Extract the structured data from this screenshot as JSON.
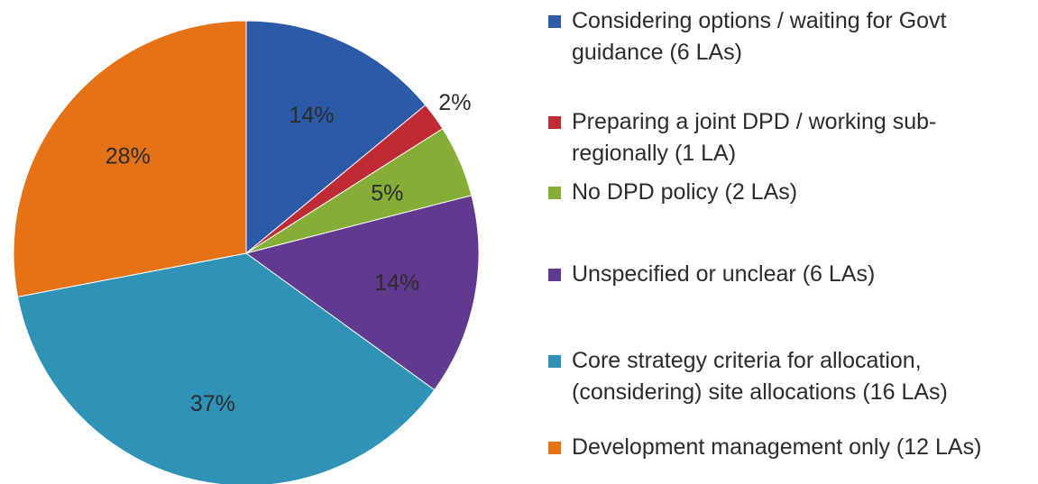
{
  "chart_data": {
    "type": "pie",
    "categories": [
      "Considering options / waiting for Govt guidance (6 LAs)",
      "Preparing a joint DPD / working sub-regionally (1 LA)",
      "No DPD policy (2 LAs)",
      "Unspecified or unclear (6 LAs)",
      "Core strategy criteria for allocation, (considering) site allocations (16 LAs)",
      "Development management only (12 LAs)"
    ],
    "values": [
      14,
      2,
      5,
      14,
      37,
      28
    ],
    "slice_labels": [
      "14%",
      "2%",
      "5%",
      "14%",
      "37%",
      "28%"
    ],
    "colors": [
      "#2c5aa8",
      "#be2b35",
      "#85ae36",
      "#603a8e",
      "#2e93b7",
      "#e57217"
    ],
    "legend_position": "right"
  },
  "legend": {
    "items": [
      {
        "label": "Considering options / waiting for Govt\nguidance (6 LAs)",
        "color": "#2c5aa8"
      },
      {
        "label": "Preparing a joint DPD / working sub-\nregionally (1 LA)",
        "color": "#be2b35"
      },
      {
        "label": "No DPD policy (2 LAs)",
        "color": "#85ae36"
      },
      {
        "label": "Unspecified or unclear (6 LAs)",
        "color": "#603a8e"
      },
      {
        "label": "Core strategy criteria for allocation,\n(considering) site allocations (16 LAs)",
        "color": "#2e93b7"
      },
      {
        "label": "Development management only (12 LAs)",
        "color": "#e57217"
      }
    ]
  }
}
